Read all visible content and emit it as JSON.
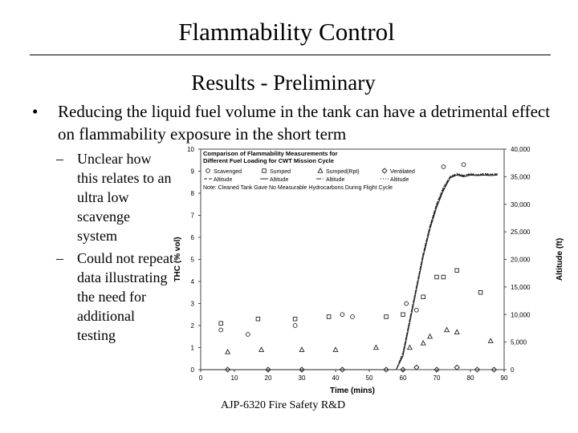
{
  "slide": {
    "title": "Flammability Control",
    "subtitle": "Results - Preliminary",
    "bullet_marker": "•",
    "bullet": "Reducing the liquid fuel volume in the tank can have a detrimental effect on flammability exposure in the short term",
    "sub_marker": "–",
    "sub_bullets": [
      "Unclear how this relates to an ultra low scavenge system",
      "Could not repeat data illustrating the need for additional testing"
    ],
    "footer": "AJP-6320 Fire Safety R&D"
  },
  "chart_data": {
    "type": "scatter",
    "title": "Comparison of Flammability Measurements for Different Fuel Loading for CWT Mission Cycle",
    "xlabel": "Time (mins)",
    "ylabel": "THC (% vol)",
    "y2label": "Altitude (ft)",
    "xlim": [
      0,
      90
    ],
    "ylim": [
      0,
      10
    ],
    "y2lim": [
      0,
      40000
    ],
    "x_ticks": [
      0,
      10,
      20,
      30,
      40,
      50,
      60,
      70,
      80,
      90
    ],
    "y_ticks": [
      0,
      1,
      2,
      3,
      4,
      5,
      6,
      7,
      8,
      9,
      10
    ],
    "y2_ticks": [
      "0",
      "5,000",
      "10,000",
      "15,000",
      "20,000",
      "25,000",
      "30,000",
      "35,000",
      "40,000"
    ],
    "y2_tick_values": [
      0,
      5000,
      10000,
      15000,
      20000,
      25000,
      30000,
      35000,
      40000
    ],
    "note": "Note:  Cleaned Tank Gave No Measurable Hydrocarbons During Flight Cycle",
    "legend_position": "top",
    "series": [
      {
        "name": "Scavenged",
        "kind": "points",
        "marker": "circle",
        "x": [
          6,
          14,
          28,
          42,
          45,
          61,
          64,
          72,
          78
        ],
        "y": [
          1.8,
          1.6,
          2.0,
          2.5,
          2.4,
          3.0,
          2.7,
          9.2,
          9.3
        ]
      },
      {
        "name": "Sumped",
        "kind": "points",
        "marker": "square",
        "x": [
          6,
          17,
          28,
          38,
          55,
          60,
          66,
          70,
          72,
          76,
          83
        ],
        "y": [
          2.1,
          2.3,
          2.3,
          2.4,
          2.4,
          2.5,
          3.3,
          4.2,
          4.2,
          4.5,
          3.5
        ]
      },
      {
        "name": "Sumped(Rpt)",
        "kind": "points",
        "marker": "triangle",
        "x": [
          8,
          18,
          30,
          40,
          52,
          62,
          66,
          68,
          73,
          76,
          86
        ],
        "y": [
          0.8,
          0.9,
          0.9,
          0.9,
          1.0,
          1.0,
          1.2,
          1.5,
          1.8,
          1.7,
          1.3
        ]
      },
      {
        "name": "Ventilated",
        "kind": "points",
        "marker": "diamond",
        "x": [
          8,
          20,
          30,
          42,
          55,
          60,
          64,
          70,
          76,
          82,
          87
        ],
        "y": [
          0.0,
          0.0,
          0.0,
          0.0,
          0.0,
          0.0,
          0.1,
          0.0,
          0.1,
          0.0,
          0.0
        ]
      },
      {
        "name": "Scavenged Altitude",
        "kind": "line",
        "dash": "4,2",
        "x": [
          0,
          58,
          60,
          62,
          64,
          66,
          68,
          70,
          72,
          74,
          76,
          78,
          80,
          82,
          84,
          86,
          88
        ],
        "y": [
          0,
          0,
          3000,
          9000,
          15000,
          21000,
          26000,
          30000,
          33000,
          35000,
          35500,
          35200,
          35500,
          35300,
          35500,
          35400,
          35500
        ]
      },
      {
        "name": "Sumped Altitude",
        "kind": "line",
        "dash": "",
        "x": [
          0,
          58,
          60,
          62,
          64,
          66,
          68,
          70,
          72,
          74,
          76,
          78,
          80,
          82,
          84,
          86,
          88
        ],
        "y": [
          0,
          0,
          2500,
          8500,
          14500,
          20500,
          25500,
          29500,
          32500,
          34800,
          35300,
          35000,
          35300,
          35200,
          35300,
          35200,
          35300
        ]
      },
      {
        "name": "Sumped(Rpt) Altitude",
        "kind": "line",
        "dash": "6,2,1,2",
        "x": [
          0,
          58,
          60,
          62,
          64,
          66,
          68,
          70,
          72,
          74,
          76,
          78,
          80,
          82,
          84,
          86,
          88
        ],
        "y": [
          0,
          0,
          2800,
          8800,
          14800,
          20800,
          25800,
          29800,
          32800,
          34900,
          35400,
          35100,
          35400,
          35250,
          35400,
          35300,
          35400
        ]
      },
      {
        "name": "Ventilated Altitude",
        "kind": "line",
        "dash": "1,2",
        "x": [
          0,
          58,
          60,
          62,
          64,
          66,
          68,
          70,
          72,
          74,
          76,
          78,
          80,
          82,
          84,
          86,
          88
        ],
        "y": [
          0,
          0,
          3200,
          9200,
          15200,
          21200,
          26200,
          30200,
          33200,
          35100,
          35600,
          35300,
          35600,
          35400,
          35600,
          35500,
          35600
        ]
      }
    ],
    "legend_rows": [
      [
        "Scavenged",
        "Sumped",
        "Sumped(Rpt)",
        "Ventilated"
      ],
      [
        "Altitude",
        "Altitude",
        "Altitude",
        "Altitude"
      ]
    ]
  }
}
